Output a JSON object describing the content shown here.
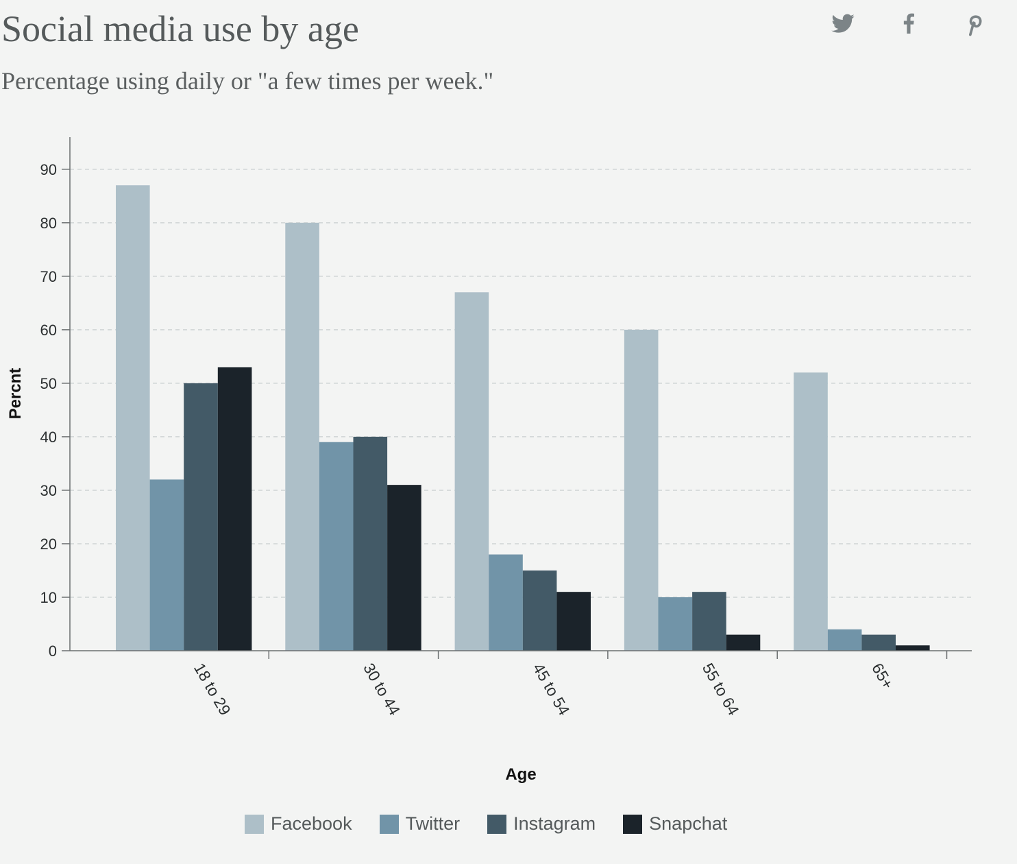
{
  "header": {
    "title": "Social media use by age",
    "subtitle": "Percentage using daily or \"a few times per week.\""
  },
  "share": [
    {
      "name": "twitter-share-icon",
      "icon": "twitter-icon"
    },
    {
      "name": "facebook-share-icon",
      "icon": "facebook-icon"
    },
    {
      "name": "pinterest-share-icon",
      "icon": "pinterest-icon"
    }
  ],
  "colors": {
    "icon": "#7c8487",
    "axis": "#6b6f70",
    "grid": "#cfd3d4",
    "tick_text": "#2b2f30"
  },
  "chart_data": {
    "type": "bar",
    "title": "",
    "xlabel": "Age",
    "ylabel": "Percnt",
    "categories": [
      "18 to 29",
      "30 to 44",
      "45 to 54",
      "55 to 64",
      "65+"
    ],
    "yticks": [
      0,
      10,
      20,
      30,
      40,
      50,
      60,
      70,
      80,
      90
    ],
    "ylim": [
      0,
      96
    ],
    "grid": true,
    "legend_position": "bottom",
    "series": [
      {
        "name": "Facebook",
        "color": "#adbfc8",
        "values": [
          87,
          80,
          67,
          60,
          52
        ]
      },
      {
        "name": "Twitter",
        "color": "#7194a8",
        "values": [
          32,
          39,
          18,
          10,
          4
        ]
      },
      {
        "name": "Instagram",
        "color": "#435a67",
        "values": [
          50,
          40,
          15,
          11,
          3
        ]
      },
      {
        "name": "Snapchat",
        "color": "#1b232a",
        "values": [
          53,
          31,
          11,
          3,
          1
        ]
      }
    ]
  }
}
